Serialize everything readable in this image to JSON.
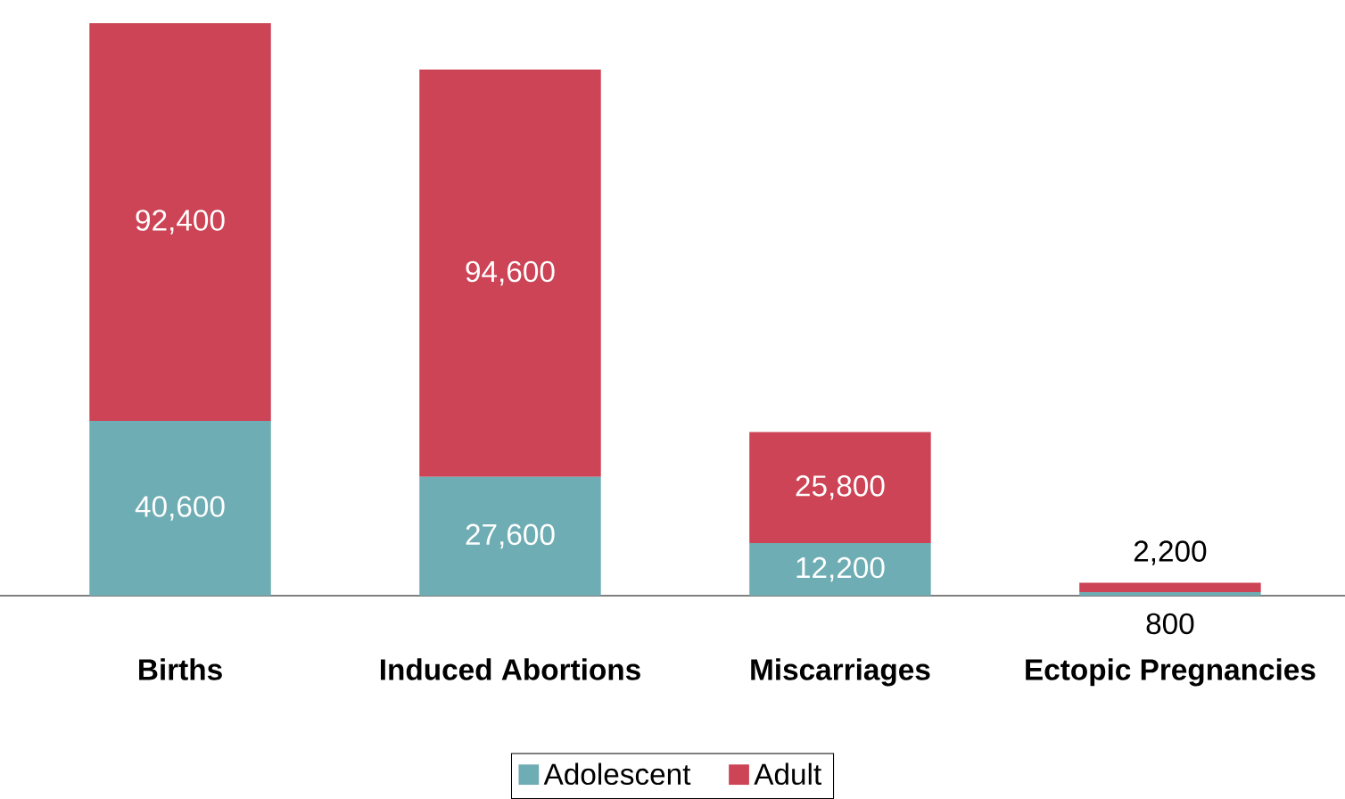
{
  "chart_data": {
    "type": "bar",
    "stacked": true,
    "legend": "bottom",
    "categories": [
      "Births",
      "Induced Abortions",
      "Miscarriages",
      "Ectopic Pregnancies"
    ],
    "series": [
      {
        "name": "Adolescent",
        "color": "#6fadb4",
        "values": [
          40600,
          27600,
          12200,
          800
        ],
        "value_labels": [
          "40,600",
          "27,600",
          "12,200",
          "800"
        ]
      },
      {
        "name": "Adult",
        "color": "#cc4455",
        "values": [
          92400,
          94600,
          25800,
          2200
        ],
        "value_labels": [
          "92,400",
          "94,600",
          "25,800",
          "2,200"
        ]
      }
    ]
  }
}
